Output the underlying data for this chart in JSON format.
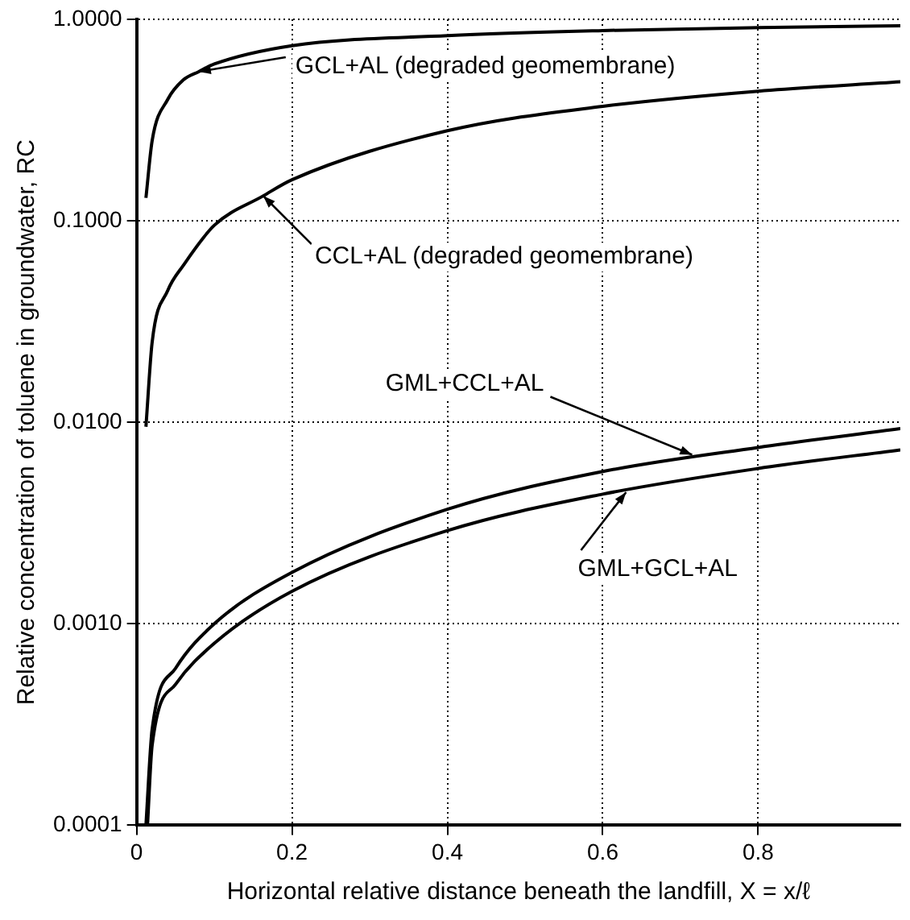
{
  "chart_data": {
    "type": "line",
    "xlabel": "Horizontal relative distance beneath the landfill, X = x/ℓ",
    "ylabel": "Relative concentration of toluene in groundwater, RC",
    "log": "y",
    "grid": true,
    "marker": "none",
    "line_style": "solid",
    "xlim": [
      0,
      0.983
    ],
    "xticks": [
      0,
      0.2,
      0.4,
      0.6,
      0.8
    ],
    "ylim": [
      0.0001,
      1
    ],
    "yticks": [
      {
        "value": 0.0001,
        "label": "0.0001"
      },
      {
        "value": 0.001,
        "label": "0.0010"
      },
      {
        "value": 0.01,
        "label": "0.0100"
      },
      {
        "value": 0.1,
        "label": "0.1000"
      },
      {
        "value": 1,
        "label": "1.0000"
      }
    ],
    "series": [
      {
        "color": "#000000",
        "x": [
          0.012,
          0.02,
          0.04,
          0.06,
          0.08,
          0.1,
          0.2,
          0.4,
          0.6,
          0.8,
          0.983
        ],
        "values": [
          0.13,
          0.25,
          0.4,
          0.5,
          0.55,
          0.6,
          0.74,
          0.83,
          0.88,
          0.91,
          0.93
        ]
      },
      {
        "color": "#000000",
        "x": [
          0.012,
          0.02,
          0.04,
          0.06,
          0.1,
          0.163,
          0.2,
          0.4,
          0.6,
          0.8,
          0.983
        ],
        "values": [
          0.0095,
          0.025,
          0.045,
          0.06,
          0.095,
          0.133,
          0.16,
          0.28,
          0.37,
          0.44,
          0.49
        ]
      },
      {
        "color": "#000000",
        "x": [
          0.012,
          0.02,
          0.05,
          0.1,
          0.2,
          0.4,
          0.6,
          0.8,
          0.983
        ],
        "values": [
          0.0001,
          0.0003,
          0.0006,
          0.001,
          0.0018,
          0.0037,
          0.0057,
          0.0075,
          0.0093
        ]
      },
      {
        "color": "#000000",
        "x": [
          0.014,
          0.02,
          0.05,
          0.1,
          0.2,
          0.4,
          0.6,
          0.8,
          0.983
        ],
        "values": [
          0.0001,
          0.00025,
          0.0005,
          0.0008,
          0.00145,
          0.0029,
          0.0044,
          0.0059,
          0.0073
        ]
      }
    ],
    "annotations": [
      {
        "text": "GCL+AL (degraded geomembrane)",
        "x": 0.08,
        "y": 0.55
      },
      {
        "text": "CCL+AL (degraded geomembrane)",
        "x": 0.163,
        "y": 0.133
      },
      {
        "text": "GML+CCL+AL",
        "x": 0.715,
        "y": 0.0069
      },
      {
        "text": "GML+GCL+AL",
        "x": 0.63,
        "y": 0.0045
      }
    ]
  }
}
